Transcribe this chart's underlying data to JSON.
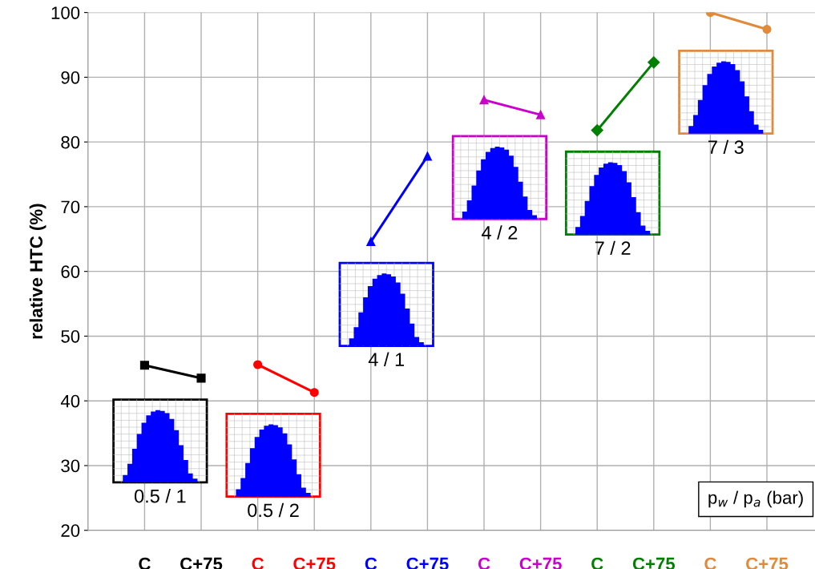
{
  "chart_data": {
    "type": "line",
    "ylabel": "relative HTC (%)",
    "categories": [
      "C",
      "C+75",
      "C",
      "C+75",
      "C",
      "C+75",
      "C",
      "C+75",
      "C",
      "C+75",
      "C",
      "C+75"
    ],
    "series": [
      {
        "color": "#000000",
        "marker": "square",
        "values": [
          45.5,
          43.5,
          null,
          null,
          null,
          null,
          null,
          null,
          null,
          null,
          null,
          null
        ]
      },
      {
        "color": "#ff0000",
        "marker": "circle",
        "values": [
          null,
          null,
          45.6,
          41.3,
          null,
          null,
          null,
          null,
          null,
          null,
          null,
          null
        ]
      },
      {
        "color": "#0000ff",
        "marker": "triangle",
        "values": [
          null,
          null,
          null,
          null,
          64.6,
          77.8,
          null,
          null,
          null,
          null,
          null,
          null
        ]
      },
      {
        "color": "#cc00cc",
        "marker": "triangle",
        "values": [
          null,
          null,
          null,
          null,
          null,
          null,
          86.5,
          84.2,
          null,
          null,
          null,
          null
        ]
      },
      {
        "color": "#008000",
        "marker": "diamond",
        "values": [
          null,
          null,
          null,
          null,
          null,
          null,
          null,
          null,
          81.8,
          92.3,
          null,
          null
        ]
      },
      {
        "color": "#e08a3c",
        "marker": "circle",
        "values": [
          null,
          null,
          null,
          null,
          null,
          null,
          null,
          null,
          null,
          null,
          100,
          97.4
        ]
      }
    ],
    "annotations": [
      "0.5 / 1",
      "0.5 / 2",
      "4 / 1",
      "4 / 2",
      "7 / 2",
      "7 / 3",
      "p$_{w}$ / p$_{a}$ (bar)"
    ],
    "ylim": [
      20,
      100
    ],
    "yticks": [
      20,
      30,
      40,
      50,
      60,
      70,
      80,
      90,
      100
    ],
    "grid": true,
    "legend": false
  }
}
